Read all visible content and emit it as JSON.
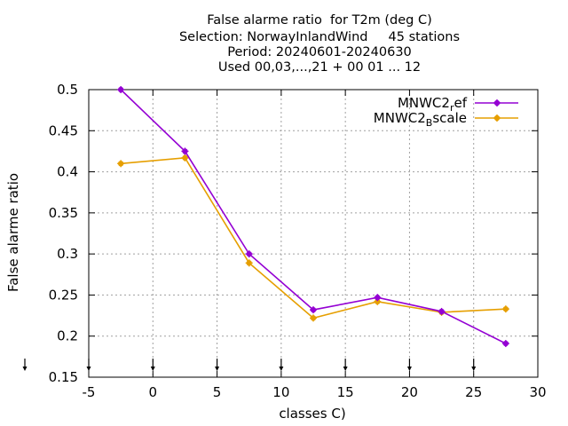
{
  "chart_data": {
    "type": "line",
    "title_lines": [
      "False alarme ratio  for T2m (deg C)",
      "Selection: NorwayInlandWind     45 stations",
      "Period: 20240601-20240630",
      "Used 00,03,...,21 + 00 01 ... 12"
    ],
    "xlabel": "classes C)",
    "ylabel": "False alarme ratio",
    "xlim": [
      -5,
      30
    ],
    "ylim": [
      0.15,
      0.5
    ],
    "xticks": [
      -5,
      0,
      5,
      10,
      15,
      20,
      25,
      30
    ],
    "xtick_labels": [
      "-5",
      "0",
      "5",
      "10",
      "15",
      "20",
      "25",
      "30"
    ],
    "yticks": [
      0.15,
      0.2,
      0.25,
      0.3,
      0.35,
      0.4,
      0.45,
      0.5
    ],
    "ytick_labels": [
      "0.15",
      "0.2",
      "0.25",
      "0.3",
      "0.35",
      "0.4",
      "0.45",
      "0.5"
    ],
    "grid": true,
    "legend_position": "top-right",
    "x": [
      -2.5,
      2.5,
      7.5,
      12.5,
      17.5,
      22.5,
      27.5
    ],
    "series": [
      {
        "name_main": "MNWC2",
        "name_sub": "r",
        "name_tail": "ef",
        "color": "#9400d3",
        "values": [
          0.5,
          0.425,
          0.3,
          0.232,
          0.247,
          0.23,
          0.191
        ]
      },
      {
        "name_main": "MNWC2",
        "name_sub": "B",
        "name_tail": "scale",
        "color": "#e69f00",
        "values": [
          0.41,
          0.417,
          0.289,
          0.222,
          0.242,
          0.229,
          0.233
        ]
      }
    ],
    "bottom_arrow_markers_x": [
      -5,
      0,
      5,
      10,
      15,
      20,
      25
    ]
  }
}
